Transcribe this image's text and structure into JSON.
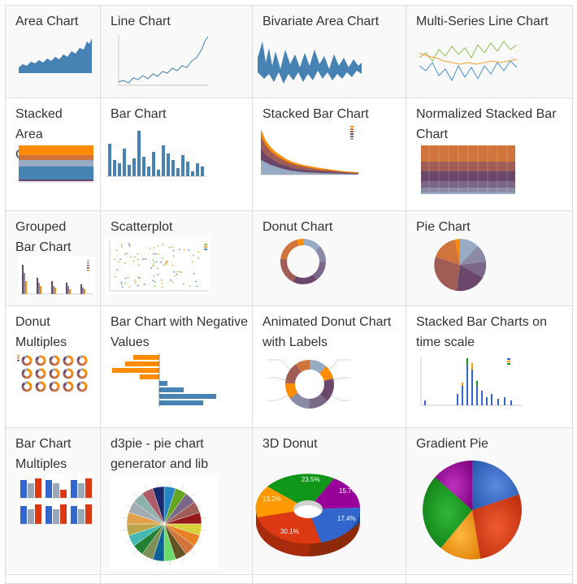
{
  "gallery": {
    "rows": [
      [
        {
          "title": "Area Chart",
          "thumb": "area-chart"
        },
        {
          "title": "Line Chart",
          "thumb": "line-chart"
        },
        {
          "title": "Bivariate Area Chart",
          "thumb": "bivariate-area-chart"
        },
        {
          "title": "Multi-Series Line Chart",
          "thumb": "multi-series-line-chart"
        }
      ],
      [
        {
          "title": "Stacked Area Chart",
          "thumb": "stacked-area-chart"
        },
        {
          "title": "Bar Chart",
          "thumb": "bar-chart"
        },
        {
          "title": "Stacked Bar Chart",
          "thumb": "stacked-bar-chart"
        },
        {
          "title": "Normalized Stacked Bar Chart",
          "thumb": "normalized-stacked-bar-chart"
        }
      ],
      [
        {
          "title": "Grouped Bar Chart",
          "thumb": "grouped-bar-chart"
        },
        {
          "title": "Scatterplot",
          "thumb": "scatterplot"
        },
        {
          "title": "Donut Chart",
          "thumb": "donut-chart"
        },
        {
          "title": "Pie Chart",
          "thumb": "pie-chart"
        }
      ],
      [
        {
          "title": "Donut Multiples",
          "thumb": "donut-multiples"
        },
        {
          "title": "Bar Chart with Negative Values",
          "thumb": "bar-chart-negative"
        },
        {
          "title": "Animated Donut Chart with Labels",
          "thumb": "animated-donut-labels"
        },
        {
          "title": "Stacked Bar Charts on time scale",
          "thumb": "stacked-bar-time-scale"
        }
      ],
      [
        {
          "title": "Bar Chart Multiples",
          "thumb": "bar-chart-multiples"
        },
        {
          "title": "d3pie - pie chart generator and lib",
          "thumb": "d3pie"
        },
        {
          "title": "3D Donut",
          "thumb": "3d-donut",
          "labels": [
            "23.5%",
            "15.7%",
            "13.2%",
            "17.4%",
            "30.1%"
          ]
        },
        {
          "title": "Gradient Pie",
          "thumb": "gradient-pie"
        }
      ]
    ]
  },
  "colors": {
    "steelblue": "#4682b4",
    "orange": "#ff8c00",
    "purple_dark": "#6b486b",
    "purple_mid": "#7b6888",
    "slate": "#8a89a6",
    "lavender": "#98abc5",
    "brown": "#a05d56",
    "tan": "#d0743c",
    "border": "#dddddd",
    "stripe": "#f9f9f9",
    "donut_green": "#109618",
    "donut_purple": "#990099",
    "donut_blue": "#3366cc",
    "donut_red": "#dc3912",
    "donut_orange": "#ff9900"
  }
}
